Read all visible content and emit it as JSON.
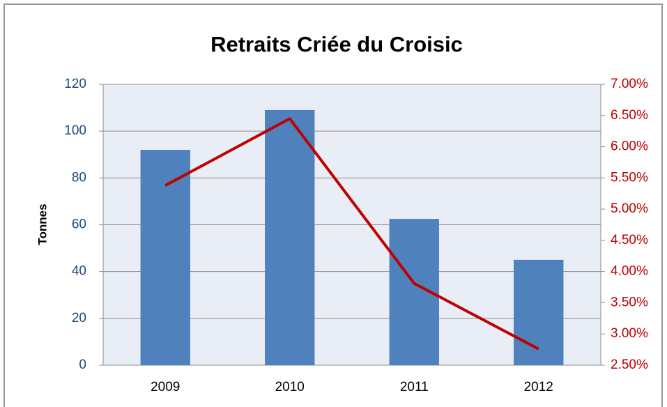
{
  "chart_data": {
    "type": "bar",
    "title": "Retraits  Criée du Croisic",
    "ylabel": "Tonnes",
    "categories": [
      "2009",
      "2010",
      "2011",
      "2012"
    ],
    "series": [
      {
        "type": "bar",
        "color": "#4f81bd",
        "values": [
          92,
          109,
          62.5,
          45
        ]
      },
      {
        "type": "line",
        "color": "#c00000",
        "axis": "y2",
        "values": [
          5.38,
          6.45,
          3.81,
          2.76
        ]
      }
    ],
    "ylim": [
      0,
      120
    ],
    "yticks": [
      0,
      20,
      40,
      60,
      80,
      100,
      120
    ],
    "y2lim": [
      2.5,
      7
    ],
    "y2ticks": [
      {
        "value": 2.5,
        "label": "2.50%"
      },
      {
        "value": 3,
        "label": "3.00%"
      },
      {
        "value": 3.5,
        "label": "3.50%"
      },
      {
        "value": 4,
        "label": "4.00%"
      },
      {
        "value": 4.5,
        "label": "4.50%"
      },
      {
        "value": 5,
        "label": "5.00%"
      },
      {
        "value": 5.5,
        "label": "5.50%"
      },
      {
        "value": 6,
        "label": "6.00%"
      },
      {
        "value": 6.5,
        "label": "6.50%"
      },
      {
        "value": 7,
        "label": "7.00%"
      }
    ],
    "grid": true
  }
}
